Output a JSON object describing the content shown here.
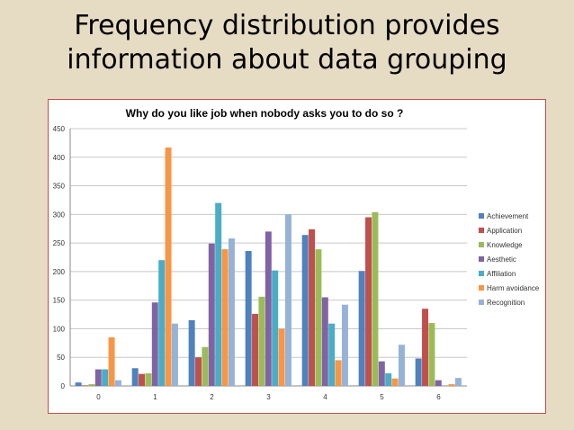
{
  "slide": {
    "title_line1": "Frequency distribution provides",
    "title_line2": "information about data grouping"
  },
  "chart_data": {
    "type": "bar",
    "title": "Why do you like job when nobody asks you to do so ?",
    "xlabel": "",
    "ylabel": "",
    "ylim": [
      0,
      450
    ],
    "yticks": [
      0,
      50,
      100,
      150,
      200,
      250,
      300,
      350,
      400,
      450
    ],
    "grid": true,
    "legend_position": "right",
    "categories": [
      "0",
      "1",
      "2",
      "3",
      "4",
      "5",
      "6"
    ],
    "series": [
      {
        "name": "Achievement",
        "color": "#4f81bd",
        "values": [
          6,
          31,
          115,
          236,
          264,
          201,
          48
        ]
      },
      {
        "name": "Application",
        "color": "#c0504d",
        "values": [
          1,
          21,
          50,
          126,
          274,
          295,
          135
        ]
      },
      {
        "name": "Knowledge",
        "color": "#9bbb59",
        "values": [
          3,
          22,
          68,
          156,
          239,
          304,
          110
        ]
      },
      {
        "name": "Aesthetic",
        "color": "#8064a2",
        "values": [
          29,
          146,
          249,
          270,
          155,
          43,
          10
        ]
      },
      {
        "name": "Affiliation",
        "color": "#4bacc6",
        "values": [
          29,
          220,
          320,
          202,
          109,
          22,
          0
        ]
      },
      {
        "name": "Harm avoidance",
        "color": "#f79646",
        "values": [
          85,
          417,
          239,
          100,
          45,
          13,
          3
        ]
      },
      {
        "name": "Recognition",
        "color": "#95b3d7",
        "values": [
          10,
          109,
          258,
          300,
          142,
          72,
          14
        ]
      }
    ]
  }
}
